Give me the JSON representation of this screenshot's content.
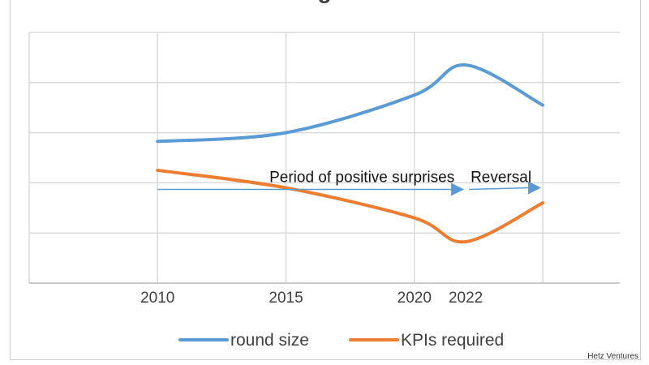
{
  "chart_data": {
    "type": "line",
    "title": "g",
    "x_categories": [
      "2010",
      "2015",
      "2020",
      "2022"
    ],
    "x_positions": [
      2010,
      2015,
      2020,
      2022
    ],
    "xlim": [
      2005,
      2028
    ],
    "ylim": [
      0,
      100
    ],
    "grid": true,
    "series": [
      {
        "name": "round size",
        "color": "#5b9bd5",
        "x": [
          2010,
          2015,
          2020,
          2022,
          2025
        ],
        "y": [
          56.5,
          60,
          75,
          87,
          71
        ]
      },
      {
        "name": "KPIs required",
        "color": "#ed7d31",
        "x": [
          2010,
          2015,
          2020,
          2022,
          2025
        ],
        "y": [
          45,
          38,
          26,
          16.5,
          32
        ]
      }
    ],
    "annotations": [
      {
        "text": "Period of positive surprises",
        "x_from": 2010,
        "x_to": 2022,
        "y": 50
      },
      {
        "text": "Reversal",
        "x_from": 2022,
        "x_to": 2025,
        "y": 50
      }
    ],
    "legend": {
      "placement": "bottom",
      "entries": [
        "round size",
        "KPIs required"
      ]
    }
  },
  "watermark": "Hetz Ventures"
}
